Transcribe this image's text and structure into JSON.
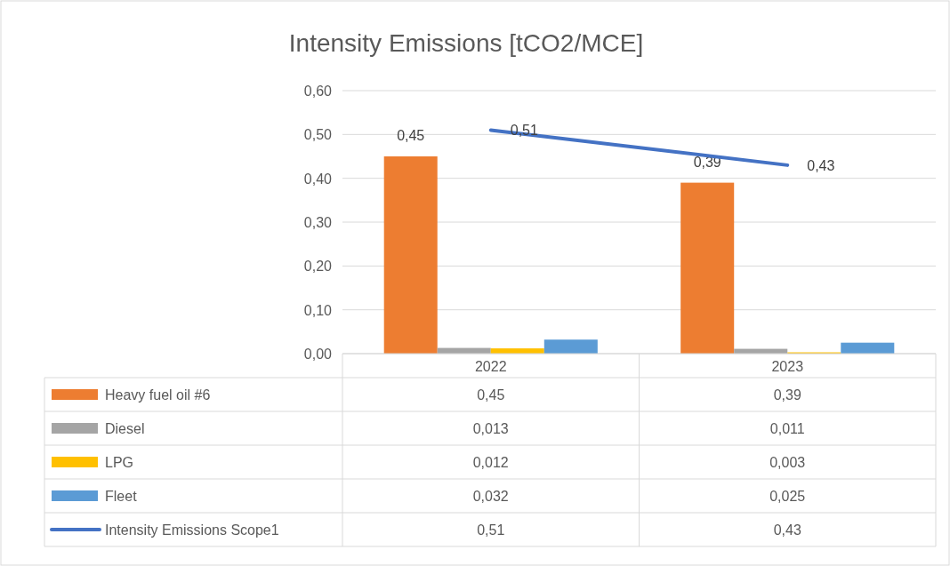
{
  "chart_data": {
    "type": "bar",
    "title": "Intensity Emissions [tCO2/MCE]",
    "categories": [
      "2022",
      "2023"
    ],
    "series": [
      {
        "name": "Heavy fuel oil #6",
        "color": "#ed7d31",
        "values": [
          0.45,
          0.39
        ],
        "value_labels": [
          "0,45",
          "0,39"
        ]
      },
      {
        "name": "Diesel",
        "color": "#a5a5a5",
        "values": [
          0.013,
          0.011
        ],
        "value_labels": [
          "0,013",
          "0,011"
        ]
      },
      {
        "name": "LPG",
        "color": "#ffc000",
        "values": [
          0.012,
          0.003
        ],
        "value_labels": [
          "0,012",
          "0,003"
        ]
      },
      {
        "name": "Fleet",
        "color": "#5b9bd5",
        "values": [
          0.032,
          0.025
        ],
        "value_labels": [
          "0,032",
          "0,025"
        ]
      },
      {
        "name": "Intensity Emissions Scope1",
        "type": "line",
        "color": "#4472c4",
        "values": [
          0.51,
          0.43
        ],
        "value_labels": [
          "0,51",
          "0,43"
        ]
      }
    ],
    "ylim": [
      0,
      0.6
    ],
    "yticks": [
      {
        "value": 0,
        "label": "0,00"
      },
      {
        "value": 0.1,
        "label": "0,10"
      },
      {
        "value": 0.2,
        "label": "0,20"
      },
      {
        "value": 0.3,
        "label": "0,30"
      },
      {
        "value": 0.4,
        "label": "0,40"
      },
      {
        "value": 0.5,
        "label": "0,50"
      },
      {
        "value": 0.6,
        "label": "0,60"
      }
    ],
    "grid": "y",
    "legend": "bottom",
    "marker": "none"
  }
}
